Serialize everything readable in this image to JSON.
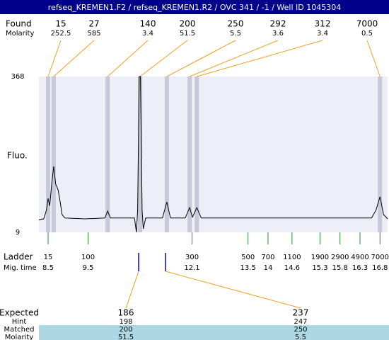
{
  "title": "refseq_KREMEN1.F2 / refseq_KREMEN1.R2 / OVC 341  / -1  / Well ID 1045304",
  "chart_data": {
    "type": "electropherogram",
    "found_label": "Found",
    "molarity_label": "Molarity",
    "y_label": "Fluo.",
    "ylim": [
      9,
      368
    ],
    "yticks": [
      9,
      368
    ],
    "xlim": [
      8.27,
      16.99
    ],
    "found": {
      "sizes": [
        15,
        27,
        140,
        200,
        250,
        292,
        312,
        7000
      ],
      "molarity": [
        252.5,
        585,
        3.4,
        51.5,
        5.5,
        3.6,
        3.4,
        0.5
      ],
      "times": [
        8.5,
        8.64,
        9.99,
        10.8,
        11.47,
        12.04,
        12.22,
        16.8
      ]
    },
    "trace": {
      "x": [
        8.27,
        8.39,
        8.46,
        8.5,
        8.54,
        8.59,
        8.64,
        8.69,
        8.75,
        8.8,
        8.85,
        8.92,
        9.42,
        9.92,
        9.99,
        10.06,
        10.66,
        10.71,
        10.74,
        10.78,
        10.81,
        10.85,
        10.88,
        10.94,
        11.36,
        11.47,
        11.56,
        11.93,
        12.04,
        12.11,
        12.22,
        12.33,
        16.59,
        16.7,
        16.8,
        16.89,
        16.99
      ],
      "values": [
        38,
        40,
        60,
        87,
        70,
        120,
        161,
        120,
        107,
        80,
        50,
        42,
        40,
        42,
        58,
        42,
        42,
        9,
        60,
        368,
        368,
        60,
        17,
        42,
        42,
        79,
        42,
        42,
        66,
        44,
        66,
        42,
        42,
        60,
        91,
        50,
        40
      ]
    },
    "ladder_label": "Ladder",
    "mig_time_label": "Mig. time",
    "ladder": {
      "sizes": [
        15,
        100,
        300,
        500,
        700,
        1100,
        1900,
        2900,
        4900,
        7000
      ],
      "times": [
        8.5,
        9.5,
        12.1,
        13.5,
        14,
        14.6,
        15.3,
        15.8,
        16.3,
        16.8
      ]
    },
    "expected": {
      "row_labels": [
        "Expected",
        "Hint",
        "Matched",
        "Molarity"
      ],
      "peaks": [
        {
          "expected": 186,
          "hint": 198,
          "matched": 200,
          "molarity": 51.5
        },
        {
          "expected": 237,
          "hint": 247,
          "matched": 250,
          "molarity": 5.5
        }
      ]
    }
  }
}
